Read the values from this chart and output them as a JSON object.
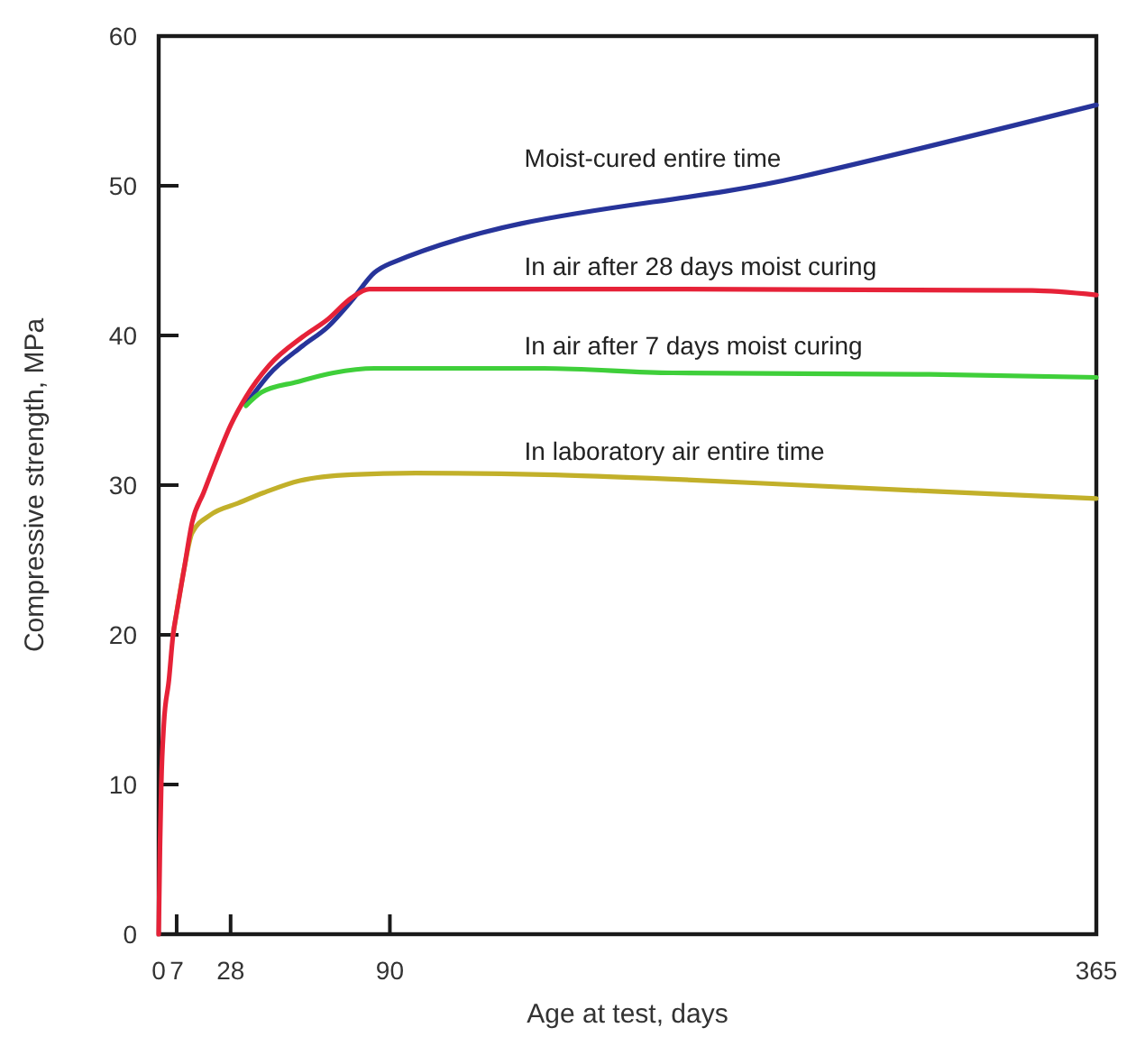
{
  "chart_data": {
    "type": "line",
    "xlabel": "Age at test, days",
    "ylabel": "Compressive strength, MPa",
    "xlim": [
      0,
      365
    ],
    "ylim": [
      0,
      60
    ],
    "xticks": [
      0,
      7,
      28,
      90,
      365
    ],
    "yticks": [
      0,
      10,
      20,
      30,
      40,
      50,
      60
    ],
    "series": [
      {
        "name": "Moist-cured entire time",
        "color": "#27349a",
        "x": [
          34,
          43,
          56,
          66,
          75,
          84,
          90,
          250,
          365
        ],
        "values": [
          35.4,
          37.4,
          39.3,
          40.6,
          42.3,
          44.2,
          44.8,
          50.6,
          55.4
        ]
      },
      {
        "name": "In laboratory air entire time",
        "color": "#c2b02a",
        "x": [
          5.6,
          7,
          10,
          13,
          20,
          31,
          41,
          55,
          75,
          100,
          150,
          200,
          250,
          300,
          365
        ],
        "values": [
          20,
          21.5,
          24.5,
          26.8,
          28,
          28.8,
          29.5,
          30.3,
          30.7,
          30.8,
          30.7,
          30.4,
          30,
          29.6,
          29.1
        ]
      },
      {
        "name": "In air after 7 days moist curing",
        "color": "#3fcf3a",
        "x": [
          34,
          40,
          54,
          68,
          84,
          150,
          200,
          300,
          365
        ],
        "values": [
          35.3,
          36.2,
          36.9,
          37.5,
          37.8,
          37.8,
          37.5,
          37.4,
          37.2
        ]
      },
      {
        "name": "In air after 28 days moist curing",
        "color": "#e62238",
        "x": [
          0,
          0.5,
          1,
          2,
          4,
          5.6,
          7,
          10,
          13,
          17.5,
          22,
          28,
          34,
          43,
          56,
          66,
          75,
          82,
          200,
          340,
          365
        ],
        "values": [
          0,
          5.8,
          10,
          14,
          17,
          20,
          21.5,
          24.5,
          27.5,
          29.5,
          31.5,
          34,
          35.9,
          38,
          39.9,
          41.1,
          42.5,
          43.1,
          43.1,
          43,
          42.7
        ]
      }
    ]
  }
}
